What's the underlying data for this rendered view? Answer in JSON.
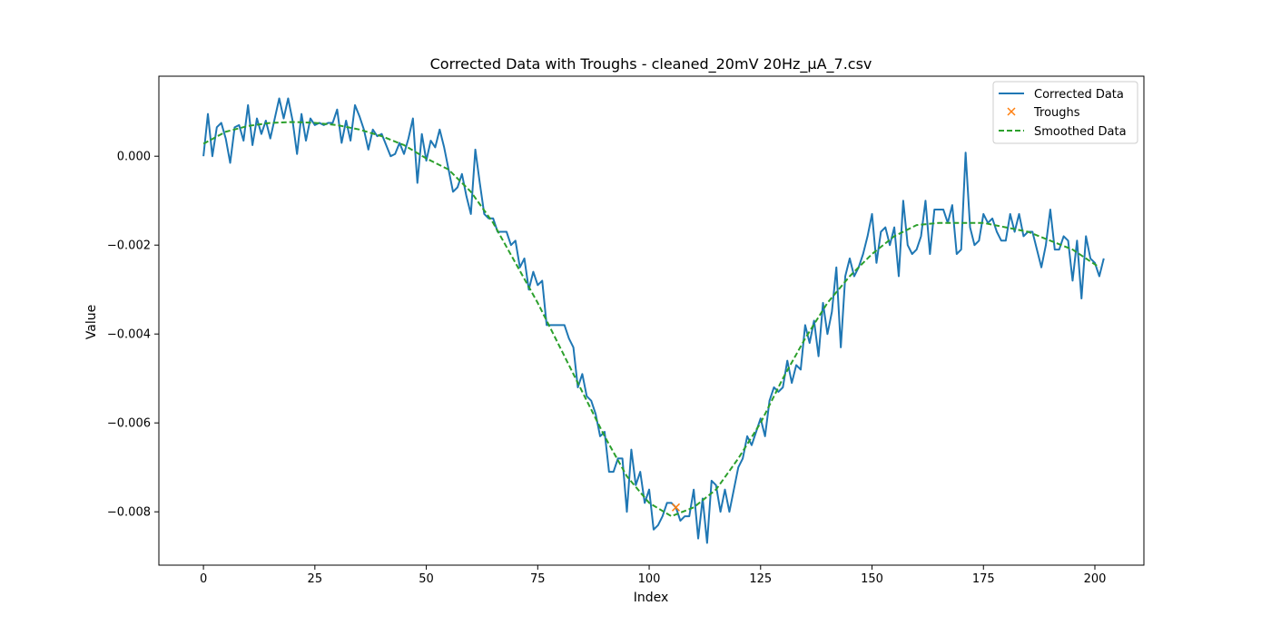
{
  "chart_data": {
    "type": "line",
    "title": "Corrected Data with Troughs - cleaned_20mV 20Hz_µA_7.csv",
    "xlabel": "Index",
    "ylabel": "Value",
    "xlim": [
      -10,
      211
    ],
    "ylim": [
      -0.0092,
      0.0018
    ],
    "x_ticks": [
      0,
      25,
      50,
      75,
      100,
      125,
      150,
      175,
      200
    ],
    "y_ticks": [
      0.0,
      -0.002,
      -0.004,
      -0.006,
      -0.008
    ],
    "y_tick_labels": [
      "0.000",
      "−0.002",
      "−0.004",
      "−0.006",
      "−0.008"
    ],
    "grid": false,
    "legend_position": "top-right",
    "series": [
      {
        "name": "Corrected Data",
        "style": "solid",
        "color": "#1f77b4",
        "values": [
          0.0,
          0.00095,
          0.0,
          0.00065,
          0.00075,
          0.0004,
          -0.00015,
          0.00065,
          0.0007,
          0.00035,
          0.00115,
          0.00025,
          0.00085,
          0.0005,
          0.0008,
          0.0004,
          0.00085,
          0.0013,
          0.00085,
          0.0013,
          0.0008,
          5e-05,
          0.00095,
          0.00035,
          0.00085,
          0.0007,
          0.00075,
          0.0007,
          0.00075,
          0.00075,
          0.00105,
          0.0003,
          0.0008,
          0.00035,
          0.00115,
          0.0009,
          0.0006,
          0.00015,
          0.0006,
          0.00045,
          0.0005,
          0.00025,
          0.0,
          5e-05,
          0.0003,
          5e-05,
          0.0004,
          0.00085,
          -0.0006,
          0.0005,
          -0.0001,
          0.00035,
          0.0002,
          0.0006,
          0.0002,
          -0.0003,
          -0.0008,
          -0.0007,
          -0.0004,
          -0.0009,
          -0.0013,
          0.00015,
          -0.0006,
          -0.0013,
          -0.0014,
          -0.0014,
          -0.0017,
          -0.0017,
          -0.0017,
          -0.002,
          -0.0019,
          -0.0025,
          -0.0023,
          -0.003,
          -0.0026,
          -0.0029,
          -0.0028,
          -0.0038,
          -0.0038,
          -0.0038,
          -0.0038,
          -0.0038,
          -0.0041,
          -0.0043,
          -0.0052,
          -0.0049,
          -0.0054,
          -0.0055,
          -0.0058,
          -0.0063,
          -0.0062,
          -0.0071,
          -0.0071,
          -0.0068,
          -0.0068,
          -0.008,
          -0.0066,
          -0.0074,
          -0.0071,
          -0.0078,
          -0.0075,
          -0.0084,
          -0.0083,
          -0.0081,
          -0.0078,
          -0.0078,
          -0.0079,
          -0.0082,
          -0.0081,
          -0.0081,
          -0.0075,
          -0.0086,
          -0.0077,
          -0.0087,
          -0.0073,
          -0.0074,
          -0.008,
          -0.0075,
          -0.008,
          -0.0075,
          -0.007,
          -0.0068,
          -0.0063,
          -0.0065,
          -0.0062,
          -0.0059,
          -0.0063,
          -0.0055,
          -0.0052,
          -0.0053,
          -0.0052,
          -0.0046,
          -0.0051,
          -0.0047,
          -0.0048,
          -0.0038,
          -0.0042,
          -0.0037,
          -0.0045,
          -0.0033,
          -0.004,
          -0.0035,
          -0.0025,
          -0.0043,
          -0.0027,
          -0.0023,
          -0.0027,
          -0.0025,
          -0.0022,
          -0.0018,
          -0.0013,
          -0.0024,
          -0.0017,
          -0.0016,
          -0.002,
          -0.0016,
          -0.0027,
          -0.001,
          -0.002,
          -0.0022,
          -0.0021,
          -0.0018,
          -0.001,
          -0.0022,
          -0.0012,
          -0.0012,
          -0.0012,
          -0.0015,
          -0.0011,
          -0.0022,
          -0.0021,
          8e-05,
          -0.0016,
          -0.002,
          -0.0019,
          -0.0013,
          -0.0015,
          -0.0014,
          -0.0017,
          -0.0019,
          -0.0019,
          -0.0013,
          -0.0017,
          -0.0013,
          -0.0018,
          -0.0017,
          -0.0017,
          -0.0021,
          -0.0025,
          -0.002,
          -0.0012,
          -0.0021,
          -0.0021,
          -0.0018,
          -0.0019,
          -0.0028,
          -0.0019,
          -0.0032,
          -0.0018,
          -0.0023,
          -0.0024,
          -0.0027,
          -0.0023
        ]
      },
      {
        "name": "Smoothed Data",
        "style": "dashed",
        "color": "#2ca02c",
        "x": [
          0,
          5,
          10,
          15,
          20,
          25,
          30,
          35,
          40,
          45,
          50,
          55,
          60,
          65,
          70,
          75,
          80,
          85,
          90,
          95,
          100,
          105,
          110,
          115,
          120,
          125,
          130,
          135,
          140,
          145,
          150,
          155,
          160,
          165,
          170,
          175,
          180,
          185,
          190,
          195,
          201
        ],
        "values": [
          0.00028,
          0.00055,
          0.00068,
          0.00075,
          0.00077,
          0.00075,
          0.0007,
          0.0006,
          0.00045,
          0.00025,
          -5e-05,
          -0.0003,
          -0.0008,
          -0.0015,
          -0.0024,
          -0.0033,
          -0.0043,
          -0.0053,
          -0.0063,
          -0.0072,
          -0.0078,
          -0.0081,
          -0.0079,
          -0.0075,
          -0.0068,
          -0.006,
          -0.005,
          -0.0041,
          -0.0033,
          -0.0027,
          -0.0022,
          -0.0018,
          -0.00155,
          -0.0015,
          -0.0015,
          -0.0015,
          -0.0016,
          -0.0017,
          -0.0019,
          -0.0021,
          -0.0025
        ]
      }
    ],
    "troughs": {
      "name": "Troughs",
      "marker": "x",
      "color": "#ff7f0e",
      "x": [
        106
      ],
      "values": [
        -0.0079
      ]
    }
  }
}
